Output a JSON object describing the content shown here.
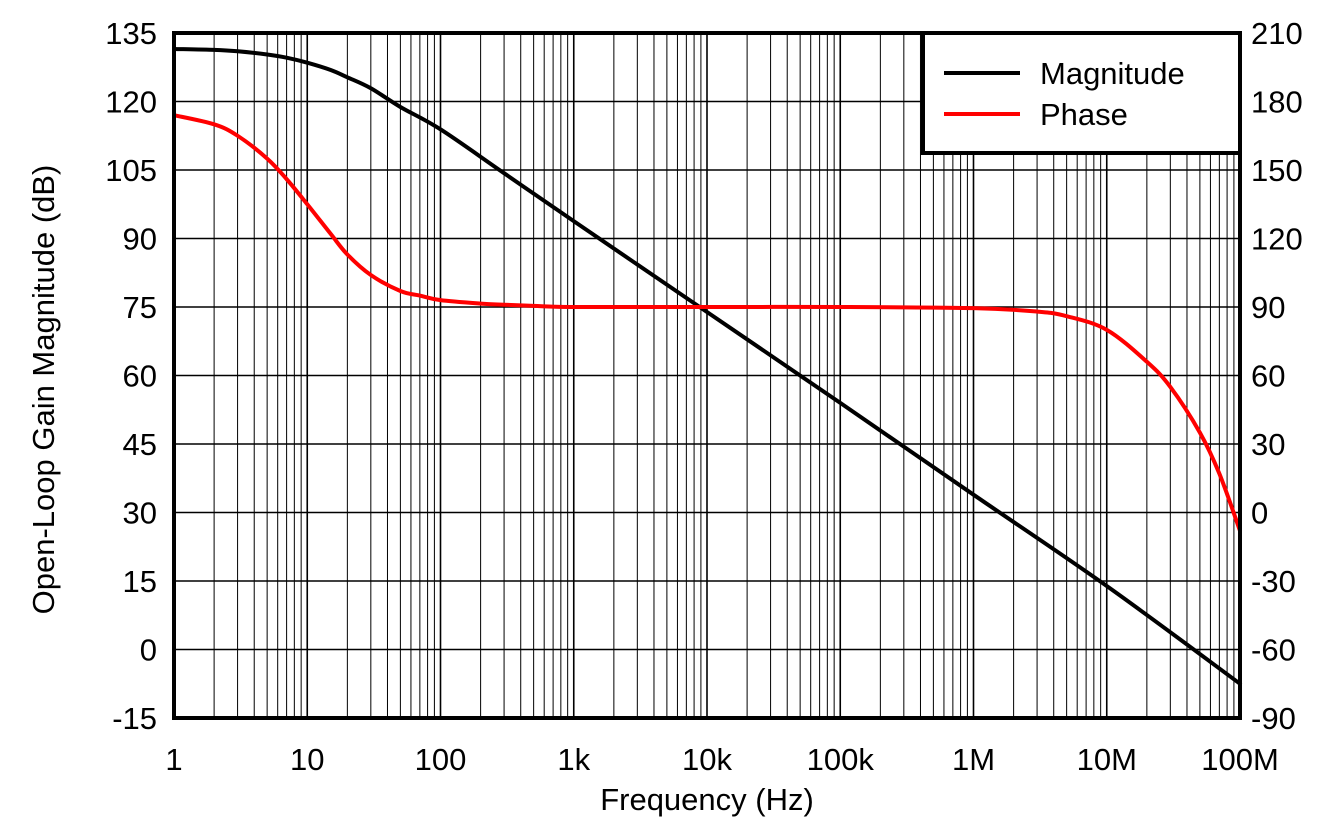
{
  "chart_data": {
    "type": "line",
    "title": "",
    "xlabel": "Frequency (Hz)",
    "ylabel": "Open-Loop Gain Magnitude (dB)",
    "ylabel_right": "",
    "x_scale": "log",
    "xlim": [
      1,
      100000000
    ],
    "ylim": [
      -15,
      135
    ],
    "ylim_right": [
      -90,
      210
    ],
    "x_tick_values": [
      1,
      10,
      100,
      1000,
      10000,
      100000,
      1000000,
      10000000,
      100000000
    ],
    "x_tick_labels": [
      "1",
      "10",
      "100",
      "1k",
      "10k",
      "100k",
      "1M",
      "10M",
      "100M"
    ],
    "y_ticks": [
      "-15",
      "0",
      "15",
      "30",
      "45",
      "60",
      "75",
      "90",
      "105",
      "120",
      "135"
    ],
    "y_ticks_right": [
      "-90",
      "-60",
      "-30",
      "0",
      "30",
      "60",
      "90",
      "120",
      "150",
      "180",
      "210"
    ],
    "grid": true,
    "legend_position": "top-right",
    "series": [
      {
        "name": "Magnitude",
        "axis": "left",
        "color": "#000000",
        "x": [
          1,
          2,
          3,
          5,
          7,
          10,
          15,
          20,
          30,
          50,
          100,
          300,
          1000,
          10000,
          100000,
          1000000,
          10000000,
          100000000
        ],
        "y": [
          131.5,
          131.3,
          131.0,
          130.3,
          129.6,
          128.5,
          126.9,
          125.3,
          122.9,
          118.8,
          113.9,
          104.3,
          93.8,
          73.9,
          54.0,
          33.9,
          13.9,
          -7.5
        ]
      },
      {
        "name": "Phase",
        "axis": "right",
        "color": "#ff0000",
        "x": [
          1,
          2,
          3,
          5,
          7,
          10,
          15,
          20,
          30,
          50,
          70,
          100,
          200,
          300,
          500,
          1000,
          10000,
          100000,
          1000000,
          3000000,
          5000000,
          10000000,
          20000000,
          30000000,
          50000000,
          70000000,
          100000000
        ],
        "y": [
          174,
          170,
          165,
          155,
          146,
          135,
          122,
          113,
          104,
          97,
          95,
          93,
          91.5,
          91,
          90.5,
          90,
          90,
          90,
          89.5,
          88,
          86,
          80,
          66,
          55,
          35,
          17,
          -8
        ]
      }
    ]
  }
}
